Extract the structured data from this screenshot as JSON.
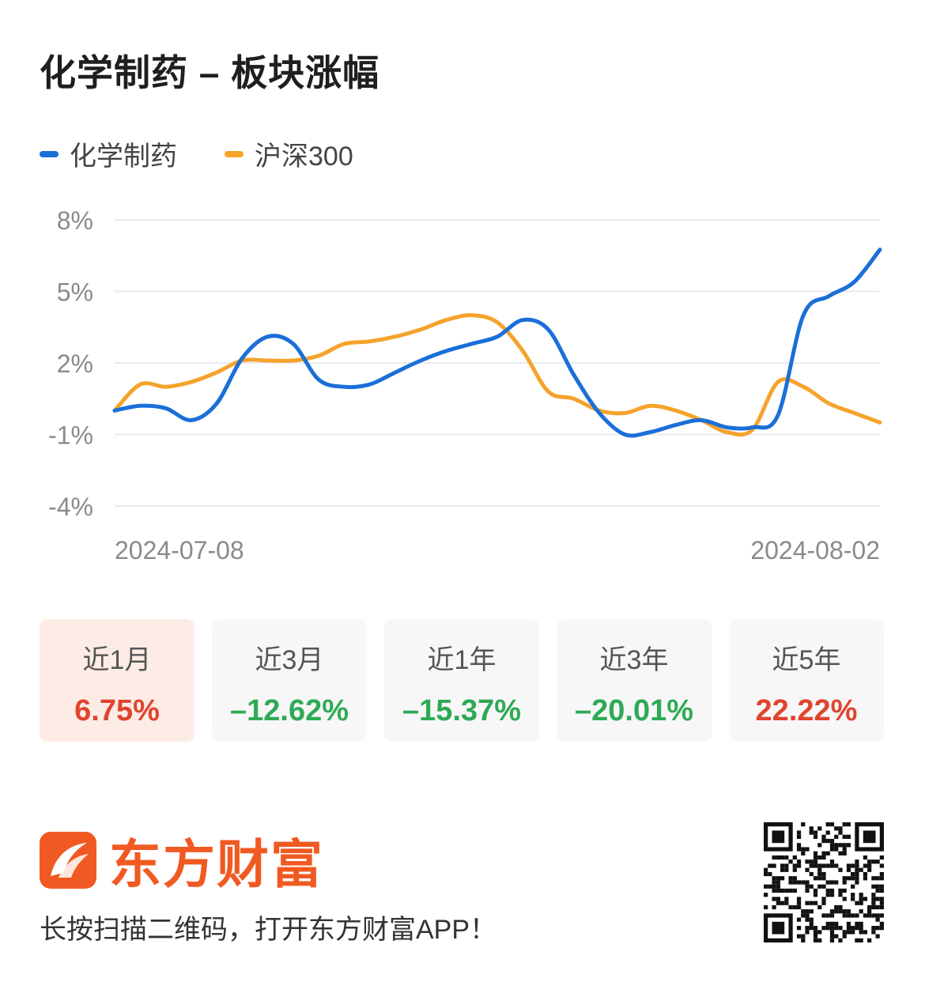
{
  "header": {
    "title": "化学制药 – 板块涨幅"
  },
  "legend": [
    {
      "label": "化学制药",
      "color": "#1a6fd8"
    },
    {
      "label": "沪深300",
      "color": "#f5a32b"
    }
  ],
  "chart_data": {
    "type": "line",
    "ylim": [
      -4,
      8
    ],
    "yticks": [
      "8%",
      "5%",
      "2%",
      "-1%",
      "-4%"
    ],
    "ytick_values": [
      8,
      5,
      2,
      -1,
      -4
    ],
    "x_labels": [
      "2024-07-08",
      "2024-08-02"
    ],
    "grid": true,
    "series": [
      {
        "name": "化学制药",
        "color": "#1a6fd8",
        "values": [
          0.0,
          0.2,
          0.1,
          -0.4,
          0.3,
          2.2,
          3.1,
          2.8,
          1.3,
          1.0,
          1.1,
          1.6,
          2.1,
          2.5,
          2.8,
          3.1,
          3.8,
          3.4,
          1.5,
          -0.1,
          -1.0,
          -0.9,
          -0.6,
          -0.4,
          -0.7,
          -0.7,
          -0.2,
          4.0,
          4.8,
          5.4,
          6.75
        ]
      },
      {
        "name": "沪深300",
        "color": "#f5a32b",
        "values": [
          0.0,
          1.1,
          1.0,
          1.2,
          1.6,
          2.1,
          2.1,
          2.1,
          2.3,
          2.8,
          2.9,
          3.1,
          3.4,
          3.8,
          4.0,
          3.7,
          2.5,
          0.8,
          0.5,
          0.0,
          -0.1,
          0.2,
          0.0,
          -0.4,
          -0.9,
          -0.8,
          1.2,
          1.0,
          0.3,
          -0.1,
          -0.5
        ]
      }
    ]
  },
  "periods": [
    {
      "label": "近1月",
      "value": "6.75%",
      "sign": "pos",
      "active": true
    },
    {
      "label": "近3月",
      "value": "–12.62%",
      "sign": "neg",
      "active": false
    },
    {
      "label": "近1年",
      "value": "–15.37%",
      "sign": "neg",
      "active": false
    },
    {
      "label": "近3年",
      "value": "–20.01%",
      "sign": "neg",
      "active": false
    },
    {
      "label": "近5年",
      "value": "22.22%",
      "sign": "pos",
      "active": false
    }
  ],
  "footer": {
    "brand_name": "东方财富",
    "brand_icon": "eastmoney-logo-icon",
    "brand_color": "#f05a22",
    "tagline": "长按扫描二维码，打开东方财富APP！",
    "qr_icon": "qr-code-icon"
  }
}
